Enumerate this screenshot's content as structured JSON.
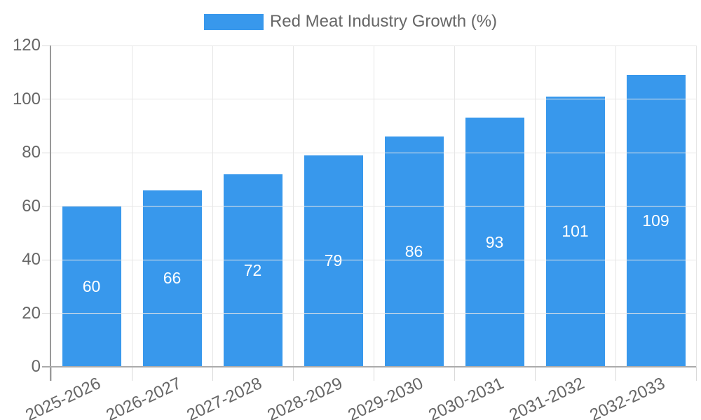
{
  "chart_data": {
    "type": "bar",
    "legend_label": "Red Meat Industry Growth (%)",
    "legend_position": "top",
    "categories": [
      "2025-2026",
      "2026-2027",
      "2027-2028",
      "2028-2029",
      "2029-2030",
      "2030-2031",
      "2031-2032",
      "2032-2033"
    ],
    "values": [
      60,
      66,
      72,
      79,
      86,
      93,
      101,
      109
    ],
    "value_labels_shown": true,
    "ylim": [
      0,
      120
    ],
    "yticks": [
      0,
      20,
      40,
      60,
      80,
      100,
      120
    ],
    "grid": true,
    "x_label_rotation_deg": -25,
    "colors": {
      "bar": "#3898ec",
      "value_label": "#ffffff",
      "axis_text": "#666666",
      "gridline": "#e6e6e6",
      "tick_line": "#d9d9d9",
      "y_axis_line": "#999999",
      "x_axis_line": "#ababab"
    }
  }
}
